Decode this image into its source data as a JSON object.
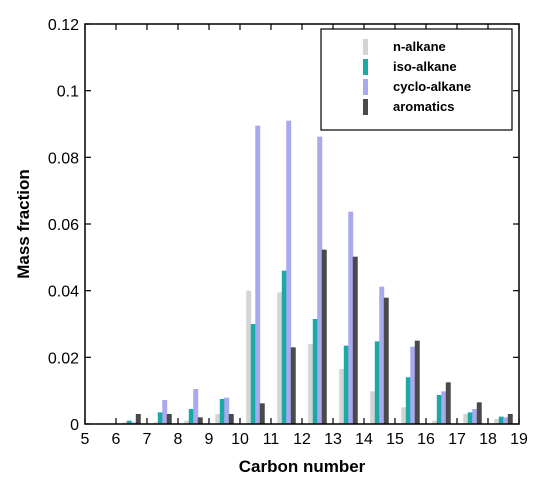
{
  "chart_data": {
    "type": "bar",
    "xlabel": "Carbon number",
    "ylabel": "Mass fraction",
    "xlim": [
      5,
      19
    ],
    "ylim": [
      0,
      0.12
    ],
    "xticks": [
      "5",
      "6",
      "7",
      "8",
      "9",
      "10",
      "11",
      "12",
      "13",
      "14",
      "15",
      "16",
      "17",
      "18",
      "19"
    ],
    "yticks": [
      "0",
      "0.02",
      "0.04",
      "0.06",
      "0.08",
      "0.1",
      "0.12"
    ],
    "grid": false,
    "legend_position": "top-right",
    "categories": [
      6,
      7,
      8,
      9,
      10,
      11,
      12,
      13,
      14,
      15,
      16,
      17,
      18
    ],
    "series": [
      {
        "name": "n-alkane",
        "color": "#d4d4d4",
        "values": [
          0.0005,
          0.0005,
          0.001,
          0.003,
          0.04,
          0.0395,
          0.024,
          0.0165,
          0.0098,
          0.005,
          0.001,
          0.003,
          0.0015
        ]
      },
      {
        "name": "iso-alkane",
        "color": "#1aaaa6",
        "values": [
          0.001,
          0.0035,
          0.0045,
          0.0075,
          0.03,
          0.046,
          0.0315,
          0.0235,
          0.0248,
          0.014,
          0.0087,
          0.0035,
          0.0022
        ]
      },
      {
        "name": "cyclo-alkane",
        "color": "#a9a9ef",
        "values": [
          0.0005,
          0.0072,
          0.0105,
          0.0079,
          0.0895,
          0.091,
          0.0862,
          0.0637,
          0.0412,
          0.0232,
          0.0098,
          0.0045,
          0.002
        ]
      },
      {
        "name": "aromatics",
        "color": "#4a4a4a",
        "values": [
          0.003,
          0.003,
          0.002,
          0.003,
          0.0062,
          0.023,
          0.0523,
          0.0502,
          0.0379,
          0.025,
          0.0125,
          0.0065,
          0.003
        ]
      }
    ]
  }
}
